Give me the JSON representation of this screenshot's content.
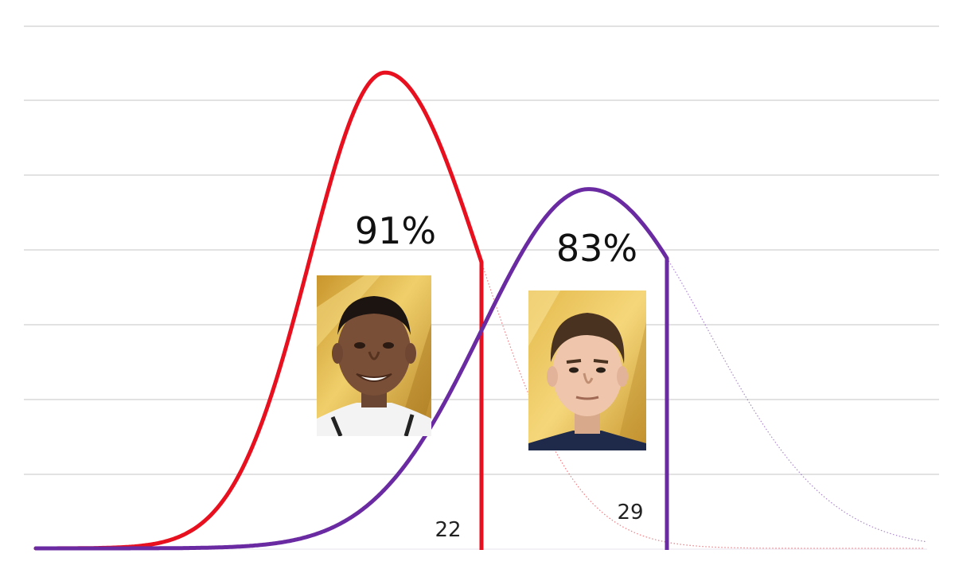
{
  "chart_data": {
    "type": "area",
    "grid": true,
    "legend": "none",
    "series": [
      {
        "key": "red",
        "color": "#e8101e",
        "percent_label": "91%",
        "cutoff_label": "22",
        "photo": "player-photo-short-dark-hair-smiling",
        "peak_level": 0.98,
        "shaded_fraction": 0.91
      },
      {
        "key": "purple",
        "color": "#6a2aa2",
        "percent_label": "83%",
        "cutoff_label": "29",
        "photo": "player-photo-brown-hair-neutral",
        "peak_level": 0.74,
        "shaded_fraction": 0.83
      }
    ],
    "gridline_count": 7,
    "card_color": "#d9b040"
  }
}
